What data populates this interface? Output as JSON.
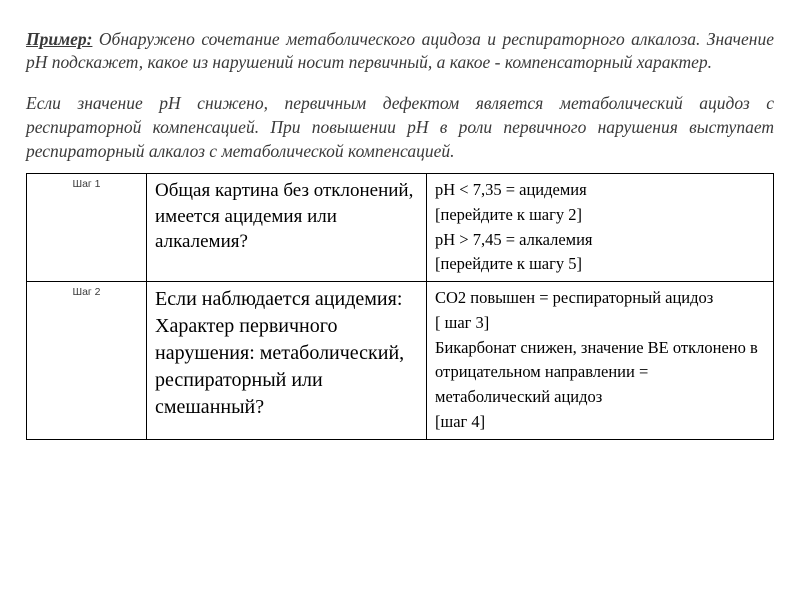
{
  "intro": {
    "label": "Пример:",
    "p1_rest": " Обнаружено сочетание метаболического ацидоза и респираторного алкалоза. Значение pH подскажет, какое из нарушений носит первичный, а какое - компенсаторный характер.",
    "p2": "Если значение pH снижено, первичным дефектом является метаболический ацидоз с респираторной компенсацией. При повышении pH в роли первичного нарушения выступает респираторный алкалоз с метаболической компенсацией."
  },
  "table": {
    "row1": {
      "step": "Шаг 1",
      "question": "Общая картина без отклонений, имеется ацидемия или алкалемия?",
      "a1": "pH < 7,35 = ацидемия",
      "a2": "[перейдите к шагу 2]",
      "a3": "pH > 7,45 = алкалемия",
      "a4": " [перейдите к шагу 5]"
    },
    "row2": {
      "step": "Шаг 2",
      "q1": "Если наблюдается ацидемия:",
      "q2": "Характер первичного нарушения: метаболический, респираторный или смешанный?",
      "a1": "CO2 повышен = респираторный ацидоз",
      "a2": "[ шаг 3]",
      "a3": "Бикарбонат снижен, значение BE отклонено в отрицательном направлении = метаболический ацидоз",
      "a4": "[шаг 4]"
    }
  }
}
